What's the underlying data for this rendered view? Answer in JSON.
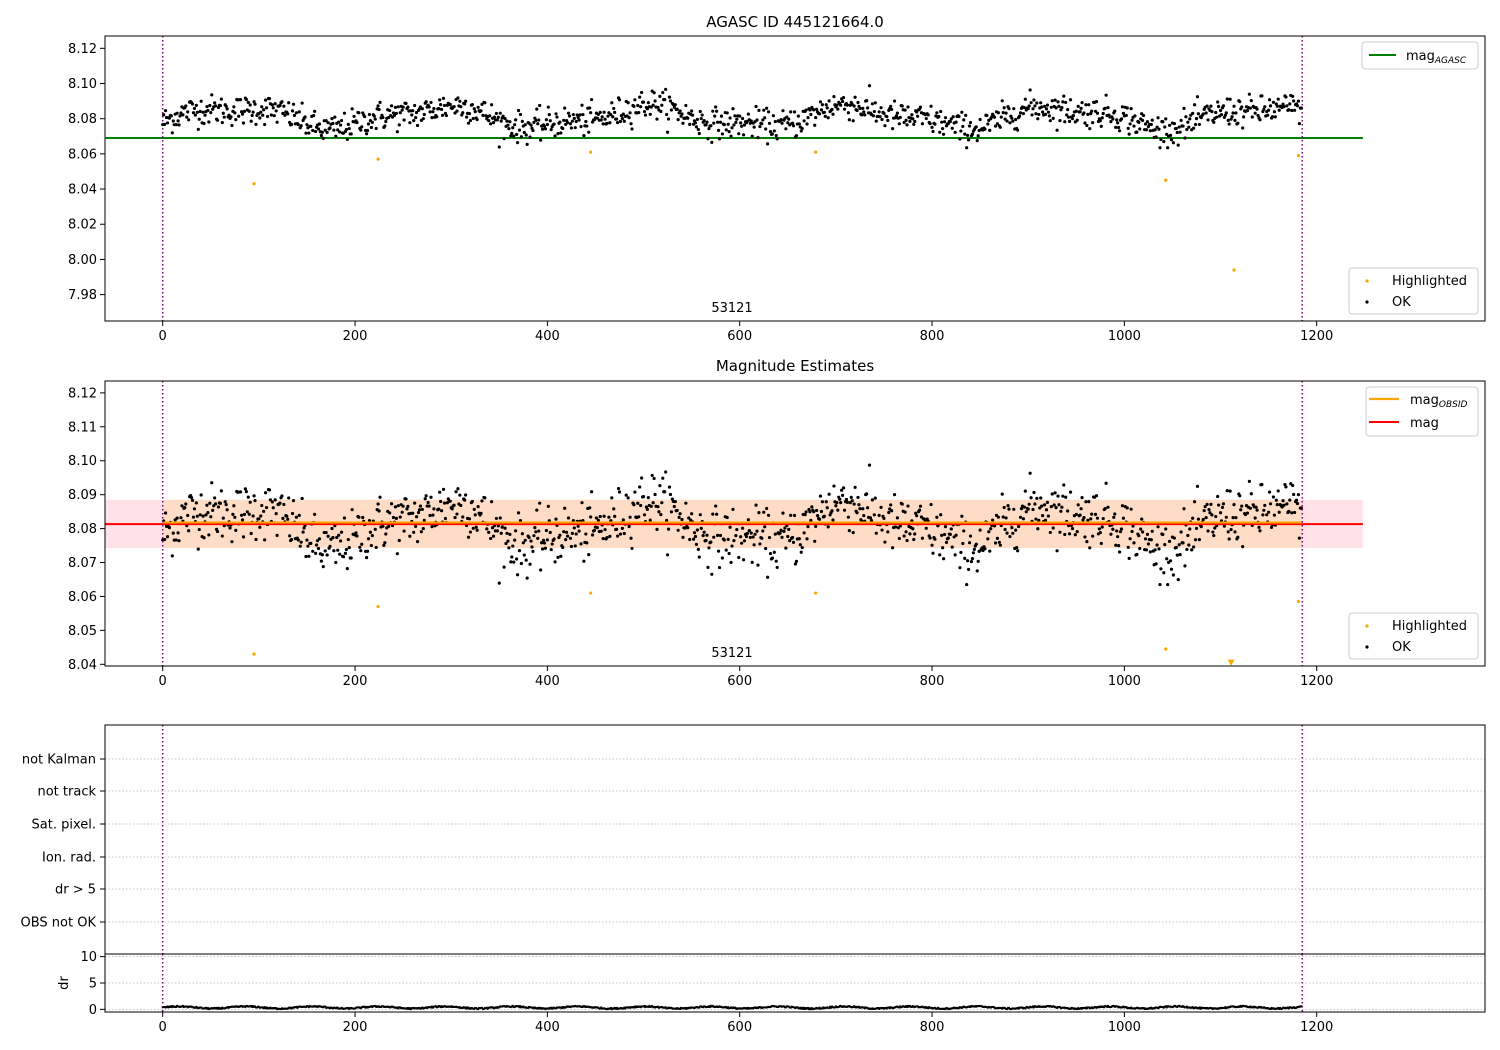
{
  "chart_data": [
    {
      "type": "scatter",
      "title": "AGASC ID 445121664.0",
      "annotation": "53121",
      "xlim": [
        -60,
        1375
      ],
      "ylim": [
        7.965,
        8.127
      ],
      "xticks": [
        0,
        200,
        400,
        600,
        800,
        1000,
        1200
      ],
      "yticks": [
        7.98,
        8.0,
        8.02,
        8.04,
        8.06,
        8.08,
        8.1,
        8.12
      ],
      "yticks_labels": [
        "7.98",
        "8.00",
        "8.02",
        "8.04",
        "8.06",
        "8.08",
        "8.10",
        "8.12"
      ],
      "vlines": [
        0,
        1185
      ],
      "hline": {
        "name": "mag",
        "subscript": "AGASC",
        "value": 8.069,
        "color": "#008000"
      },
      "legend_lines": [
        {
          "name": "mag",
          "subscript": "AGASC",
          "color": "#008000"
        }
      ],
      "legend_points": [
        {
          "name": "Highlighted",
          "color": "#FFA500"
        },
        {
          "name": "OK",
          "color": "#000000"
        }
      ],
      "highlighted": {
        "x": [
          95,
          224,
          445,
          679,
          1043,
          1114,
          1181
        ],
        "y": [
          8.043,
          8.057,
          8.061,
          8.061,
          8.045,
          7.994,
          8.059
        ]
      },
      "ok_series": {
        "n": 1185,
        "x_start": 0,
        "x_end": 1185,
        "mean": 8.081,
        "min": 8.064,
        "max": 8.1
      }
    },
    {
      "type": "scatter",
      "title": "Magnitude Estimates",
      "annotation": "53121",
      "xlim": [
        -60,
        1375
      ],
      "ylim": [
        8.0395,
        8.1235
      ],
      "xticks": [
        0,
        200,
        400,
        600,
        800,
        1000,
        1200
      ],
      "yticks": [
        8.04,
        8.05,
        8.06,
        8.07,
        8.08,
        8.09,
        8.1,
        8.11,
        8.12
      ],
      "yticks_labels": [
        "8.04",
        "8.05",
        "8.06",
        "8.07",
        "8.08",
        "8.09",
        "8.10",
        "8.11",
        "8.12"
      ],
      "vlines": [
        0,
        1185
      ],
      "mag_line": {
        "name": "mag",
        "value": 8.0813,
        "band": [
          8.0743,
          8.0885
        ],
        "color": "#FF0000",
        "band_color": "#FFC0CB"
      },
      "obsid_line": {
        "name": "mag",
        "subscript": "OBSID",
        "value": 8.0818,
        "band": [
          8.0743,
          8.0885
        ],
        "color": "#FFA500",
        "band_color": "#FFDAB9"
      },
      "legend_lines": [
        {
          "name": "mag",
          "subscript": "OBSID",
          "color": "#FFA500"
        },
        {
          "name": "mag",
          "subscript": "",
          "color": "#FF0000"
        }
      ],
      "legend_points": [
        {
          "name": "Highlighted",
          "color": "#FFA500"
        },
        {
          "name": "OK",
          "color": "#000000"
        }
      ],
      "highlighted": {
        "x": [
          95,
          224,
          445,
          679,
          1043,
          1181
        ],
        "y": [
          8.043,
          8.057,
          8.061,
          8.061,
          8.0445,
          8.0585
        ]
      },
      "offscale_marker": {
        "x": 1111,
        "y": 8.0405
      },
      "ok_series": {
        "n": 1185,
        "x_start": 0,
        "x_end": 1185,
        "mean": 8.081,
        "min": 8.063,
        "max": 8.1
      }
    },
    {
      "type": "scatter",
      "title": "",
      "xlim": [
        -60,
        1375
      ],
      "categories": [
        "not Kalman",
        "not track",
        "Sat. pixel.",
        "Ion. rad.",
        "dr > 5",
        "OBS not OK"
      ],
      "vlines": [
        0,
        1185
      ],
      "grid": true
    },
    {
      "type": "line",
      "ylabel": "dr",
      "xlim": [
        -60,
        1375
      ],
      "ylim": [
        -0.5,
        10.5
      ],
      "yticks": [
        0,
        5,
        10
      ],
      "yticks_labels": [
        "0",
        "5",
        "10"
      ],
      "xticks": [
        0,
        200,
        400,
        600,
        800,
        1000,
        1200
      ],
      "vlines": [
        0,
        1185
      ],
      "series": [
        {
          "n": 1185,
          "x_start": 0,
          "x_end": 1185,
          "mean": 0.35,
          "min": 0.0,
          "max": 0.8
        }
      ]
    }
  ]
}
